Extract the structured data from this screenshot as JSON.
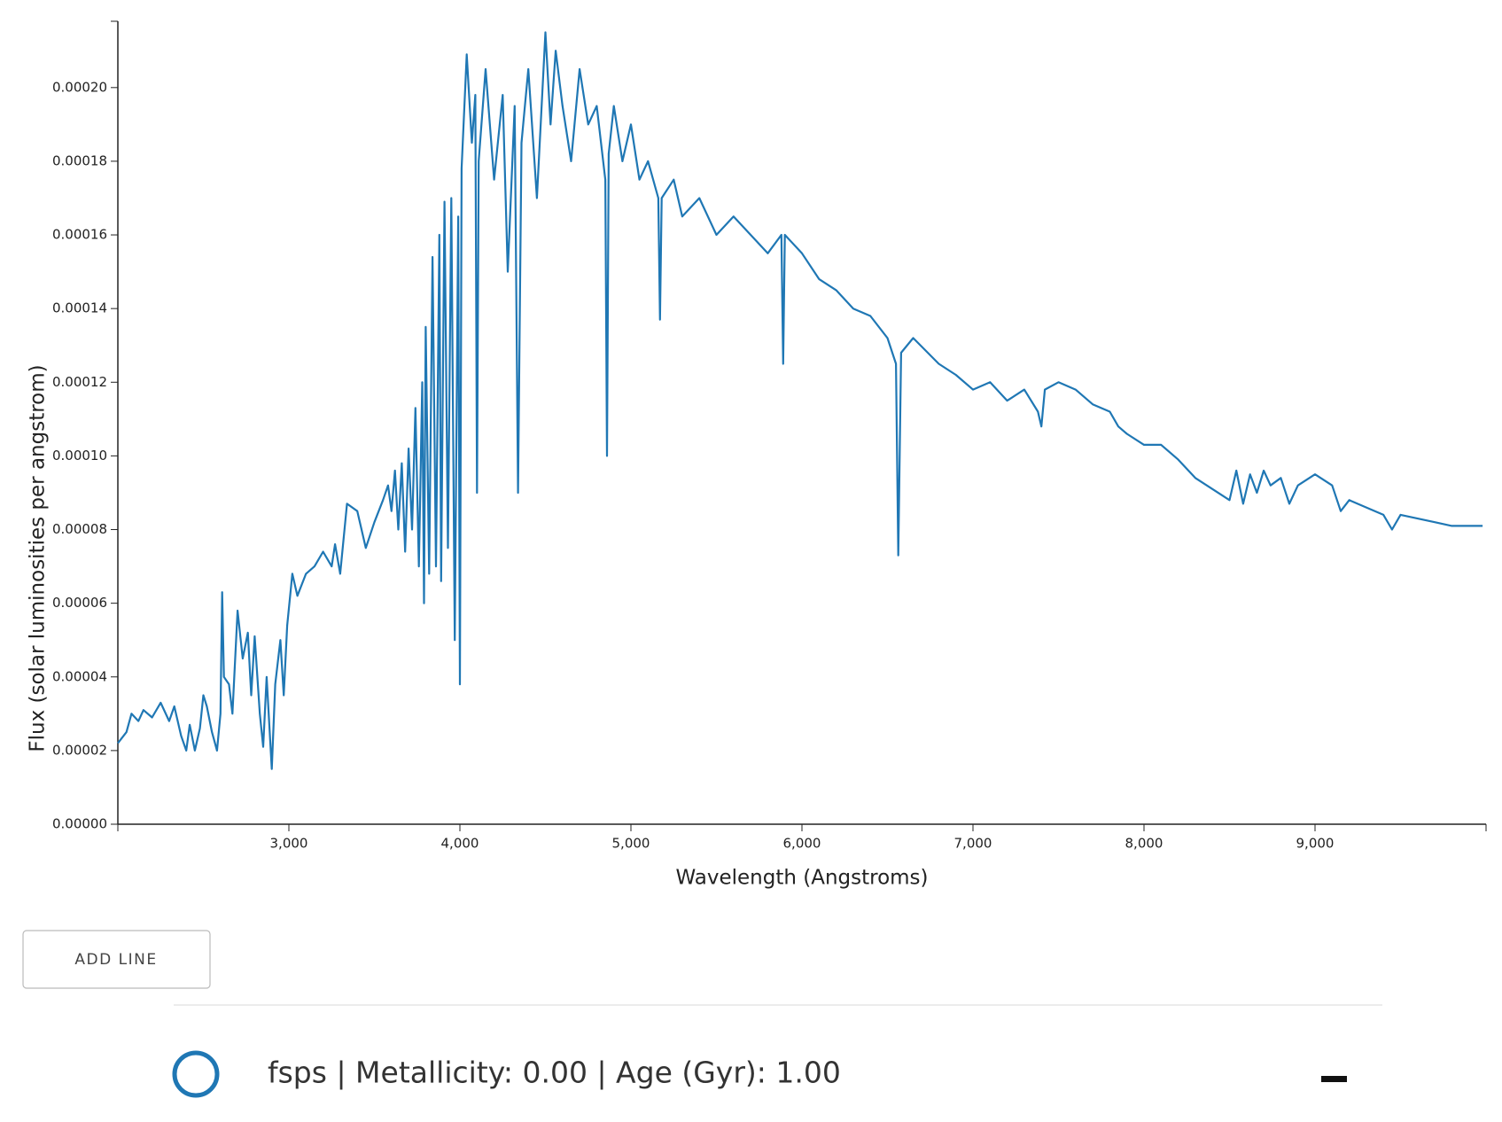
{
  "chart_data": {
    "type": "line",
    "x_label": "Wavelength (Angstroms)",
    "y_label": "Flux (solar luminosities per angstrom)",
    "xlim": [
      2000,
      10000
    ],
    "ylim": [
      0,
      0.000218
    ],
    "xticks": [
      {
        "value": 3000,
        "label": "3,000"
      },
      {
        "value": 4000,
        "label": "4,000"
      },
      {
        "value": 5000,
        "label": "5,000"
      },
      {
        "value": 6000,
        "label": "6,000"
      },
      {
        "value": 7000,
        "label": "7,000"
      },
      {
        "value": 8000,
        "label": "8,000"
      },
      {
        "value": 9000,
        "label": "9,000"
      }
    ],
    "yticks": [
      {
        "value": 0,
        "label": "0.00000"
      },
      {
        "value": 2e-05,
        "label": "0.00002"
      },
      {
        "value": 4e-05,
        "label": "0.00004"
      },
      {
        "value": 6e-05,
        "label": "0.00006"
      },
      {
        "value": 8e-05,
        "label": "0.00008"
      },
      {
        "value": 0.0001,
        "label": "0.00010"
      },
      {
        "value": 0.00012,
        "label": "0.00012"
      },
      {
        "value": 0.00014,
        "label": "0.00014"
      },
      {
        "value": 0.00016,
        "label": "0.00016"
      },
      {
        "value": 0.00018,
        "label": "0.00018"
      },
      {
        "value": 0.0002,
        "label": "0.00020"
      }
    ],
    "series": [
      {
        "color": "#1f77b4",
        "x": [
          2000,
          2050,
          2080,
          2120,
          2150,
          2200,
          2250,
          2300,
          2330,
          2370,
          2400,
          2420,
          2450,
          2480,
          2500,
          2520,
          2550,
          2580,
          2600,
          2610,
          2620,
          2650,
          2670,
          2700,
          2730,
          2760,
          2780,
          2800,
          2830,
          2850,
          2870,
          2900,
          2920,
          2950,
          2970,
          2990,
          3020,
          3050,
          3100,
          3150,
          3200,
          3250,
          3270,
          3300,
          3340,
          3400,
          3450,
          3500,
          3550,
          3580,
          3600,
          3620,
          3640,
          3660,
          3680,
          3700,
          3720,
          3740,
          3760,
          3780,
          3790,
          3800,
          3820,
          3840,
          3860,
          3880,
          3890,
          3910,
          3930,
          3950,
          3970,
          3990,
          4000,
          4010,
          4040,
          4070,
          4090,
          4100,
          4110,
          4150,
          4200,
          4250,
          4280,
          4320,
          4340,
          4360,
          4400,
          4450,
          4500,
          4530,
          4560,
          4600,
          4650,
          4700,
          4750,
          4800,
          4850,
          4860,
          4870,
          4900,
          4950,
          5000,
          5050,
          5100,
          5160,
          5170,
          5180,
          5250,
          5300,
          5400,
          5500,
          5600,
          5700,
          5800,
          5880,
          5890,
          5900,
          6000,
          6100,
          6200,
          6300,
          6400,
          6500,
          6550,
          6563,
          6580,
          6650,
          6800,
          6900,
          7000,
          7100,
          7200,
          7300,
          7380,
          7400,
          7420,
          7500,
          7600,
          7700,
          7800,
          7850,
          7900,
          8000,
          8100,
          8200,
          8300,
          8400,
          8500,
          8540,
          8580,
          8620,
          8660,
          8700,
          8740,
          8800,
          8850,
          8900,
          9000,
          9100,
          9150,
          9200,
          9300,
          9400,
          9450,
          9500,
          9600,
          9700,
          9800,
          9980
        ],
        "values": [
          2.2e-05,
          2.5e-05,
          3e-05,
          2.8e-05,
          3.1e-05,
          2.9e-05,
          3.3e-05,
          2.8e-05,
          3.2e-05,
          2.4e-05,
          2e-05,
          2.7e-05,
          2e-05,
          2.6e-05,
          3.5e-05,
          3.2e-05,
          2.5e-05,
          2e-05,
          3e-05,
          6.3e-05,
          4e-05,
          3.8e-05,
          3e-05,
          5.8e-05,
          4.5e-05,
          5.2e-05,
          3.5e-05,
          5.1e-05,
          3e-05,
          2.1e-05,
          4e-05,
          1.5e-05,
          3.8e-05,
          5e-05,
          3.5e-05,
          5.4e-05,
          6.8e-05,
          6.2e-05,
          6.8e-05,
          7e-05,
          7.4e-05,
          7e-05,
          7.6e-05,
          6.8e-05,
          8.7e-05,
          8.5e-05,
          7.5e-05,
          8.2e-05,
          8.8e-05,
          9.2e-05,
          8.5e-05,
          9.6e-05,
          8e-05,
          9.8e-05,
          7.4e-05,
          0.000102,
          8e-05,
          0.000113,
          7e-05,
          0.00012,
          6e-05,
          0.000135,
          6.8e-05,
          0.000154,
          7e-05,
          0.00016,
          6.6e-05,
          0.000169,
          7.5e-05,
          0.00017,
          5e-05,
          0.000165,
          3.8e-05,
          0.000178,
          0.000209,
          0.000185,
          0.000198,
          9e-05,
          0.00018,
          0.000205,
          0.000175,
          0.000198,
          0.00015,
          0.000195,
          9e-05,
          0.000185,
          0.000205,
          0.00017,
          0.000215,
          0.00019,
          0.00021,
          0.000195,
          0.00018,
          0.000205,
          0.00019,
          0.000195,
          0.000175,
          0.0001,
          0.000182,
          0.000195,
          0.00018,
          0.00019,
          0.000175,
          0.00018,
          0.00017,
          0.000137,
          0.00017,
          0.000175,
          0.000165,
          0.00017,
          0.00016,
          0.000165,
          0.00016,
          0.000155,
          0.00016,
          0.000125,
          0.00016,
          0.000155,
          0.000148,
          0.000145,
          0.00014,
          0.000138,
          0.000132,
          0.000125,
          7.3e-05,
          0.000128,
          0.000132,
          0.000125,
          0.000122,
          0.000118,
          0.00012,
          0.000115,
          0.000118,
          0.000112,
          0.000108,
          0.000118,
          0.00012,
          0.000118,
          0.000114,
          0.000112,
          0.000108,
          0.000106,
          0.000103,
          0.000103,
          9.9e-05,
          9.4e-05,
          9.1e-05,
          8.8e-05,
          9.6e-05,
          8.7e-05,
          9.5e-05,
          9e-05,
          9.6e-05,
          9.2e-05,
          9.4e-05,
          8.7e-05,
          9.2e-05,
          9.5e-05,
          9.2e-05,
          8.5e-05,
          8.8e-05,
          8.6e-05,
          8.4e-05,
          8e-05,
          8.4e-05,
          8.3e-05,
          8.2e-05,
          8.1e-05,
          8.1e-05
        ]
      }
    ]
  },
  "controls": {
    "add_button": "ADD LINE",
    "lines": [
      {
        "label": "fsps | Metallicity: 0.00 | Age (Gyr): 1.00"
      }
    ]
  }
}
